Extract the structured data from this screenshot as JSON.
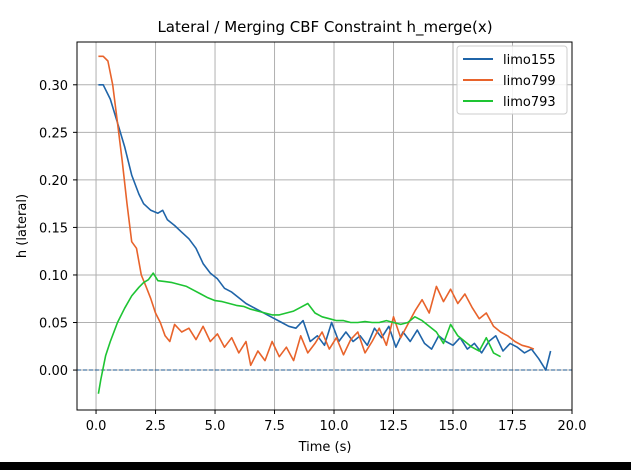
{
  "chart_data": {
    "type": "line",
    "title": "Lateral / Merging CBF Constraint h_merge(x)",
    "xlabel": "Time (s)",
    "ylabel": "h  (lateral)",
    "xlim": [
      -0.8,
      20.0
    ],
    "ylim": [
      -0.042,
      0.345
    ],
    "xticks": [
      0.0,
      2.5,
      5.0,
      7.5,
      10.0,
      12.5,
      15.0,
      17.5,
      20.0
    ],
    "xtick_labels": [
      "0.0",
      "2.5",
      "5.0",
      "7.5",
      "10.0",
      "12.5",
      "15.0",
      "17.5",
      "20.0"
    ],
    "yticks": [
      0.0,
      0.05,
      0.1,
      0.15,
      0.2,
      0.25,
      0.3
    ],
    "ytick_labels": [
      "0.00",
      "0.05",
      "0.10",
      "0.15",
      "0.20",
      "0.25",
      "0.30"
    ],
    "grid": true,
    "legend_position": "upper right",
    "reference_line": {
      "y": 0.0,
      "style": "dashed",
      "color": "#1f5a91"
    },
    "series": [
      {
        "name": "limo155",
        "color": "#1f64a8",
        "x": [
          0.1,
          0.3,
          0.6,
          0.9,
          1.2,
          1.5,
          1.8,
          2.0,
          2.3,
          2.6,
          2.8,
          3.0,
          3.3,
          3.6,
          3.9,
          4.2,
          4.5,
          4.8,
          5.1,
          5.4,
          5.7,
          6.0,
          6.3,
          6.6,
          6.9,
          7.2,
          7.5,
          7.8,
          8.1,
          8.4,
          8.7,
          9.0,
          9.3,
          9.6,
          9.9,
          10.2,
          10.5,
          10.8,
          11.1,
          11.4,
          11.7,
          12.0,
          12.3,
          12.6,
          12.9,
          13.2,
          13.5,
          13.8,
          14.1,
          14.4,
          14.7,
          15.0,
          15.3,
          15.6,
          15.9,
          16.2,
          16.5,
          16.8,
          17.1,
          17.4,
          17.7,
          18.0,
          18.3,
          18.6,
          18.9,
          19.1
        ],
        "y": [
          0.3,
          0.3,
          0.285,
          0.26,
          0.235,
          0.205,
          0.185,
          0.175,
          0.168,
          0.165,
          0.168,
          0.158,
          0.152,
          0.145,
          0.138,
          0.128,
          0.112,
          0.102,
          0.096,
          0.086,
          0.082,
          0.076,
          0.07,
          0.066,
          0.062,
          0.058,
          0.054,
          0.05,
          0.046,
          0.044,
          0.052,
          0.03,
          0.036,
          0.026,
          0.05,
          0.03,
          0.04,
          0.03,
          0.036,
          0.026,
          0.044,
          0.034,
          0.046,
          0.024,
          0.04,
          0.03,
          0.042,
          0.028,
          0.022,
          0.036,
          0.03,
          0.026,
          0.034,
          0.022,
          0.028,
          0.018,
          0.03,
          0.036,
          0.02,
          0.028,
          0.024,
          0.018,
          0.022,
          0.012,
          0.0,
          0.02
        ]
      },
      {
        "name": "limo799",
        "color": "#e8632b",
        "x": [
          0.1,
          0.3,
          0.5,
          0.7,
          0.9,
          1.1,
          1.3,
          1.5,
          1.7,
          1.9,
          2.1,
          2.3,
          2.5,
          2.7,
          2.9,
          3.1,
          3.3,
          3.6,
          3.9,
          4.2,
          4.5,
          4.8,
          5.1,
          5.4,
          5.7,
          6.0,
          6.3,
          6.5,
          6.8,
          7.1,
          7.4,
          7.7,
          8.0,
          8.3,
          8.6,
          8.9,
          9.2,
          9.5,
          9.8,
          10.1,
          10.4,
          10.7,
          11.0,
          11.3,
          11.6,
          11.9,
          12.2,
          12.5,
          12.8,
          13.1,
          13.4,
          13.7,
          14.0,
          14.3,
          14.6,
          14.9,
          15.2,
          15.5,
          15.8,
          16.1,
          16.4,
          16.7,
          17.0,
          17.3,
          17.6,
          17.9,
          18.2,
          18.4
        ],
        "y": [
          0.33,
          0.33,
          0.325,
          0.3,
          0.26,
          0.22,
          0.175,
          0.135,
          0.128,
          0.1,
          0.088,
          0.075,
          0.06,
          0.05,
          0.036,
          0.03,
          0.048,
          0.04,
          0.044,
          0.032,
          0.046,
          0.03,
          0.038,
          0.024,
          0.034,
          0.018,
          0.03,
          0.005,
          0.02,
          0.01,
          0.03,
          0.014,
          0.024,
          0.01,
          0.036,
          0.018,
          0.028,
          0.04,
          0.022,
          0.034,
          0.016,
          0.032,
          0.04,
          0.018,
          0.03,
          0.044,
          0.026,
          0.056,
          0.034,
          0.048,
          0.062,
          0.074,
          0.06,
          0.088,
          0.072,
          0.085,
          0.07,
          0.08,
          0.066,
          0.054,
          0.06,
          0.046,
          0.04,
          0.036,
          0.03,
          0.026,
          0.024,
          0.022
        ]
      },
      {
        "name": "limo793",
        "color": "#1ec433",
        "x": [
          0.1,
          0.2,
          0.4,
          0.6,
          0.9,
          1.2,
          1.5,
          1.8,
          2.0,
          2.2,
          2.4,
          2.6,
          2.9,
          3.2,
          3.5,
          3.8,
          4.1,
          4.4,
          4.7,
          5.0,
          5.3,
          5.6,
          5.9,
          6.2,
          6.5,
          6.8,
          7.1,
          7.4,
          7.7,
          8.0,
          8.3,
          8.6,
          8.9,
          9.2,
          9.5,
          9.8,
          10.1,
          10.4,
          10.7,
          11.0,
          11.3,
          11.6,
          11.9,
          12.2,
          12.5,
          12.8,
          13.1,
          13.4,
          13.7,
          14.0,
          14.3,
          14.6,
          14.9,
          15.2,
          15.5,
          15.8,
          16.1,
          16.4,
          16.7,
          17.0
        ],
        "y": [
          -0.025,
          -0.01,
          0.015,
          0.03,
          0.05,
          0.065,
          0.078,
          0.087,
          0.092,
          0.095,
          0.102,
          0.094,
          0.093,
          0.092,
          0.09,
          0.088,
          0.084,
          0.08,
          0.076,
          0.073,
          0.072,
          0.07,
          0.068,
          0.067,
          0.064,
          0.062,
          0.06,
          0.058,
          0.058,
          0.06,
          0.062,
          0.066,
          0.07,
          0.06,
          0.056,
          0.054,
          0.052,
          0.052,
          0.05,
          0.05,
          0.051,
          0.05,
          0.05,
          0.052,
          0.05,
          0.048,
          0.05,
          0.056,
          0.052,
          0.046,
          0.04,
          0.028,
          0.048,
          0.036,
          0.03,
          0.024,
          0.02,
          0.034,
          0.018,
          0.014
        ]
      }
    ]
  }
}
